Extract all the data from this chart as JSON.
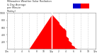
{
  "title": "Milwaukee Weather Solar Radiation\n& Day Average\nper Minute\n(Today)",
  "bg_color": "#ffffff",
  "plot_bg_color": "#ffffff",
  "fill_color": "#ff0000",
  "avg_line_color": "#ffffff",
  "legend_blue": "#0000cc",
  "legend_red": "#ff0000",
  "xlim": [
    0,
    1440
  ],
  "ylim": [
    0,
    1000
  ],
  "x_ticks": [
    0,
    120,
    240,
    360,
    480,
    600,
    720,
    840,
    960,
    1080,
    1200,
    1320,
    1440
  ],
  "x_labels": [
    "12a",
    "2",
    "4",
    "6",
    "8",
    "10",
    "12p",
    "2",
    "4",
    "6",
    "8",
    "10",
    "12a"
  ],
  "y_ticks": [
    200,
    400,
    600,
    800,
    1000
  ],
  "grid_color": "#aaaaaa",
  "peak_x": 730,
  "peak_value": 960,
  "start_x": 360,
  "end_x": 1150,
  "avg_x": 730,
  "border_color": "#888888",
  "tick_color": "#333333",
  "title_color": "#333333"
}
